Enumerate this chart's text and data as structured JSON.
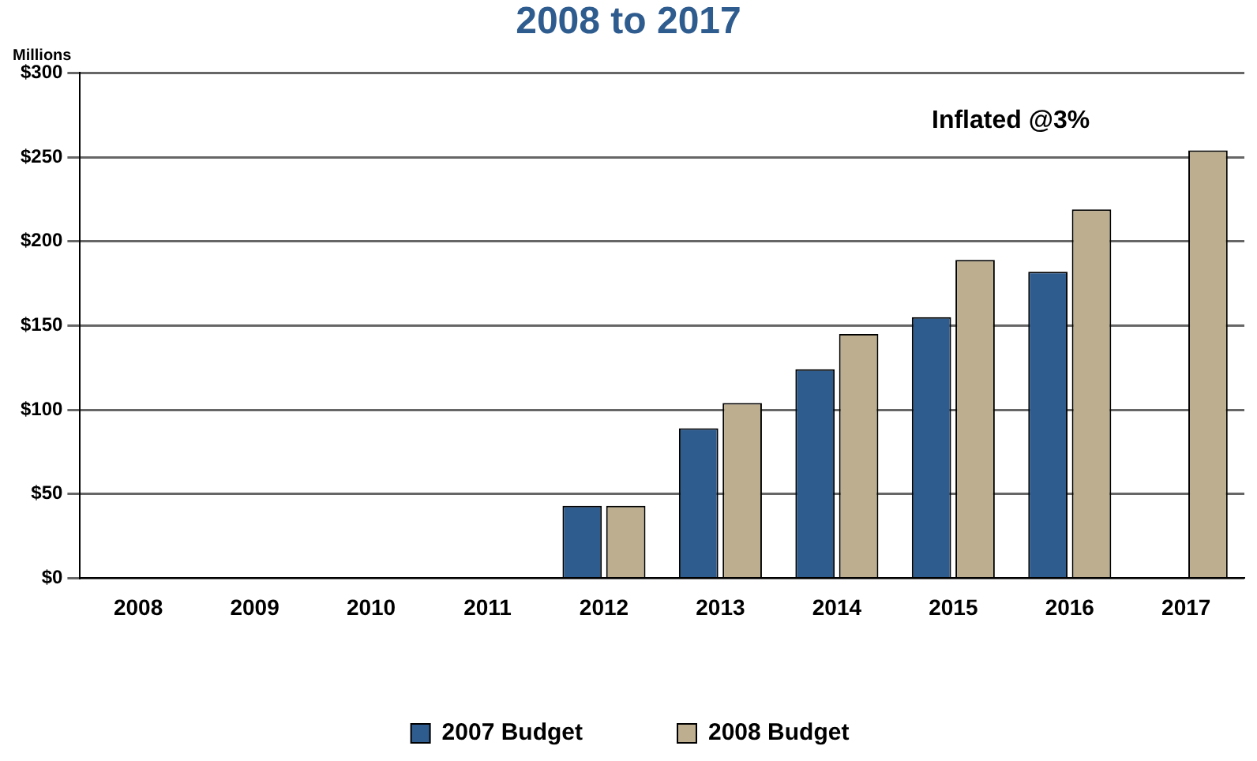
{
  "chart_data": {
    "type": "bar",
    "title": "2008 to 2017",
    "ylabel": "Millions",
    "categories": [
      "2008",
      "2009",
      "2010",
      "2011",
      "2012",
      "2013",
      "2014",
      "2015",
      "2016",
      "2017"
    ],
    "series": [
      {
        "name": "2007 Budget",
        "color": "#2f5c8f",
        "values": [
          0,
          0,
          0,
          0,
          43,
          89,
          124,
          155,
          182,
          0
        ]
      },
      {
        "name": "2008 Budget",
        "color": "#bcae8e",
        "values": [
          0,
          0,
          0,
          0,
          43,
          104,
          145,
          189,
          219,
          254
        ]
      }
    ],
    "ylim": [
      0,
      300
    ],
    "yticks": [
      {
        "value": 0,
        "label": "$0"
      },
      {
        "value": 50,
        "label": "$50"
      },
      {
        "value": 100,
        "label": "$100"
      },
      {
        "value": 150,
        "label": "$150"
      },
      {
        "value": 200,
        "label": "$200"
      },
      {
        "value": 250,
        "label": "$250"
      },
      {
        "value": 300,
        "label": "$300"
      }
    ],
    "grid": "y",
    "legend": "bottom",
    "annotations": [
      "Inflated @3%"
    ]
  }
}
